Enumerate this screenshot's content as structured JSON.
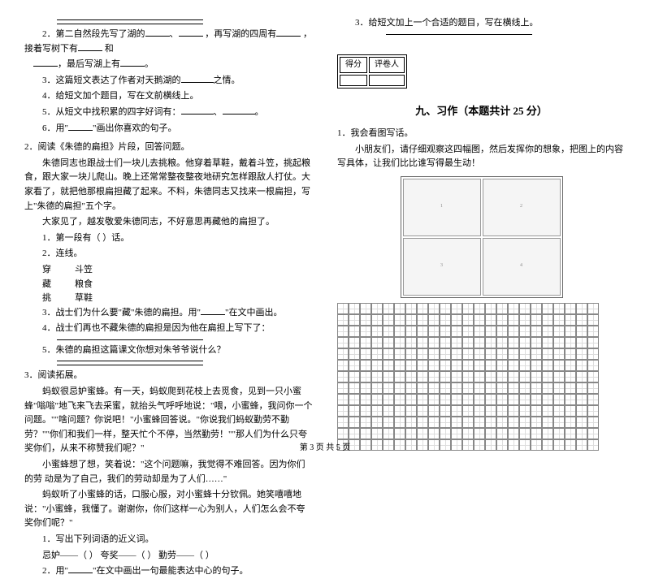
{
  "left": {
    "section1": {
      "q2": "2．第二自然段先写了湖的",
      "q2b": "，再写湖的四周有",
      "q2c": "，接着写树下有",
      "q2d": "和",
      "q2e": "，最后写湖上有",
      "q3": "3．这篇短文表达了作者对天鹅湖的",
      "q3b": "之情。",
      "q4": "4．给短文加个题目，写在文前横线上。",
      "q5": "5．从短文中找积累的四字好词有：",
      "q6": "6．用\"",
      "q6b": "\"画出你喜欢的句子。"
    },
    "section2": {
      "title": "2．阅读《朱德的扁担》片段，回答问题。",
      "p1": "朱德同志也跟战士们一块儿去挑粮。他穿着草鞋，戴着斗笠，挑起粮食，跟大家一块儿爬山。晚上还常常整夜整夜地研究怎样跟敌人打仗。大家看了，就把他那根扁担藏了起来。不料，朱德同志又找来一根扁担，写上\"朱德的扁担\"五个字。",
      "p2": "大家见了，越发敬爱朱德同志，不好意思再藏他的扁担了。",
      "q1": "1．第一段有（    ）话。",
      "q2": "2．连线。",
      "w1a": "穿",
      "w1b": "斗笠",
      "w2a": "藏",
      "w2b": "粮食",
      "w3a": "挑",
      "w3b": "草鞋",
      "q3": "3．战士们为什么要\"藏\"朱德的扁担。用\"",
      "q3b": "\"在文中画出。",
      "q4": "4．战士们再也不藏朱德的扁担是因为他在扁担上写下了：",
      "q5": "5．朱德的扁担这篇课文你想对朱爷爷说什么？"
    },
    "section3": {
      "title": "3．阅读拓展。",
      "p1": "蚂蚁很忌妒蜜蜂。有一天，蚂蚁爬到花枝上去觅食，见到一只小蜜蜂\"嗡嗡\"地飞来飞去采蜜，就抬头气呼呼地说：\"喂，小蜜蜂，我问你一个问题。\"\"啥问题？你说吧！\"小蜜蜂回答说。\"你说我们蚂蚁勤劳不勤劳？\"\"你们和我们一样，整天忙个不停，当然勤劳！\"\"那人们为什么只夸奖你们，从来不称赞我们呢？\"",
      "p2": "小蜜蜂想了想，笑着说：\"这个问题嘛，我觉得不难回答。因为你们的劳  动是为了自己，我们的劳动却是为了人们……\"",
      "p3": "蚂蚁听了小蜜蜂的话，口服心服，对小蜜蜂十分钦佩。她笑嘻嘻地说：\"小蜜蜂，我懂了。谢谢你，你们这样一心为别人，人们怎么会不夸奖你们呢？\"",
      "q1": "1．写出下列词语的近义词。",
      "q1a": "忌妒——（    ）   夸奖——（    ）   勤劳——（    ）",
      "q2": "2．用\"",
      "q2b": "\"在文中画出一句最能表达中心的句子。"
    }
  },
  "right": {
    "q3": "3．给短文加上一个合适的题目，写在横线上。",
    "score1": "得分",
    "score2": "评卷人",
    "title": "九、习作（本题共计 25 分）",
    "sub": "1．我会看图写话。",
    "p": "小朋友们，请仔细观察这四幅图，然后发挥你的想象，把图上的内容写具体，让我们比比谁写得最生动！"
  },
  "footer": "第 3 页 共 5 页",
  "grid": {
    "rows": 13,
    "cols": 23
  }
}
